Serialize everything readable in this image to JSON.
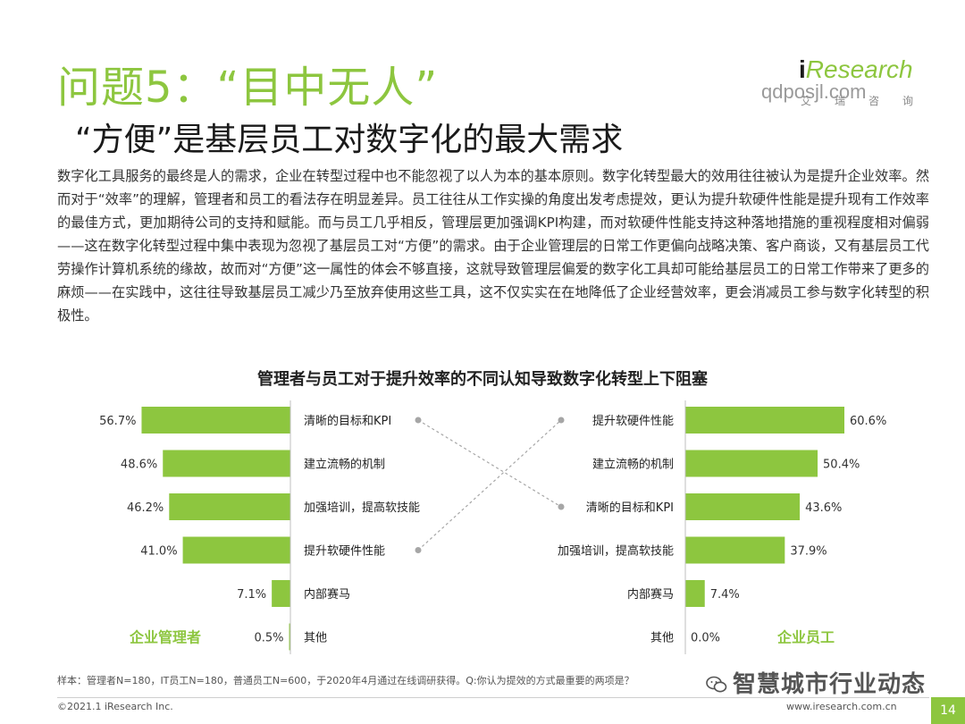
{
  "header": {
    "title": "问题5：“目中无人”",
    "subtitle": "“方便”是基层员工对数字化的最大需求",
    "logo_brand_i": "i",
    "logo_brand_rest": "Research",
    "logo_cn": "艾瑞咨询",
    "watermark": "qdposjl.com"
  },
  "body": {
    "paragraph": "数字化工具服务的最终是人的需求，企业在转型过程中也不能忽视了以人为本的基本原则。数字化转型最大的效用往往被认为是提升企业效率。然而对于“效率”的理解，管理者和员工的看法存在明显差异。员工往往从工作实操的角度出发考虑提效，更认为提升软硬件性能是提升现有工作效率的最佳方式，更加期待公司的支持和赋能。而与员工几乎相反，管理层更加强调KPI构建，而对软硬件性能支持这种落地措施的重视程度相对偏弱——这在数字化转型过程中集中表现为忽视了基层员工对“方便”的需求。由于企业管理层的日常工作更偏向战略决策、客户商谈，又有基层员工代劳操作计算机系统的缘故，故而对“方便”这一属性的体会不够直接，这就导致管理层偏爱的数字化工具却可能给基层员工的日常工作带来了更多的麻烦——在实践中，这往往导致基层员工减少乃至放弃使用这些工具，这不仅实实在在地降低了企业经营效率，更会消减员工参与数字化转型的积极性。"
  },
  "chart_data": {
    "type": "bar",
    "title": "管理者与员工对于提升效率的不同认知导致数字化转型上下阻塞",
    "bar_color": "#8dc63f",
    "connector_color": "#a6a6a6",
    "xlim": [
      0,
      60.6
    ],
    "series": [
      {
        "name": "企业管理者",
        "categories": [
          "清晰的目标和KPI",
          "建立流畅的机制",
          "加强培训，提高软技能",
          "提升软硬件性能",
          "内部赛马",
          "其他"
        ],
        "values": [
          56.7,
          48.6,
          46.2,
          41.0,
          7.1,
          0.5
        ],
        "labels": [
          "56.7%",
          "48.6%",
          "46.2%",
          "41.0%",
          "7.1%",
          "0.5%"
        ]
      },
      {
        "name": "企业员工",
        "categories": [
          "提升软硬件性能",
          "建立流畅的机制",
          "清晰的目标和KPI",
          "加强培训，提高软技能",
          "内部赛马",
          "其他"
        ],
        "values": [
          60.6,
          50.4,
          43.6,
          37.9,
          7.4,
          0.0
        ],
        "labels": [
          "60.6%",
          "50.4%",
          "43.6%",
          "37.9%",
          "7.4%",
          "0.0%"
        ]
      }
    ],
    "links": [
      {
        "from": "清晰的目标和KPI",
        "to": "清晰的目标和KPI"
      },
      {
        "from": "提升软硬件性能",
        "to": "提升软硬件性能"
      }
    ]
  },
  "footer": {
    "note": "样本：管理者N=180，IT员工N=180，普通员工N=600，于2020年4月通过在线调研获得。Q:你认为提效的方式最重要的两项是？",
    "wechat": "智慧城市行业动态",
    "copyright": "©2021.1 iResearch Inc.",
    "site": "www.iresearch.com.cn",
    "page": "14"
  }
}
